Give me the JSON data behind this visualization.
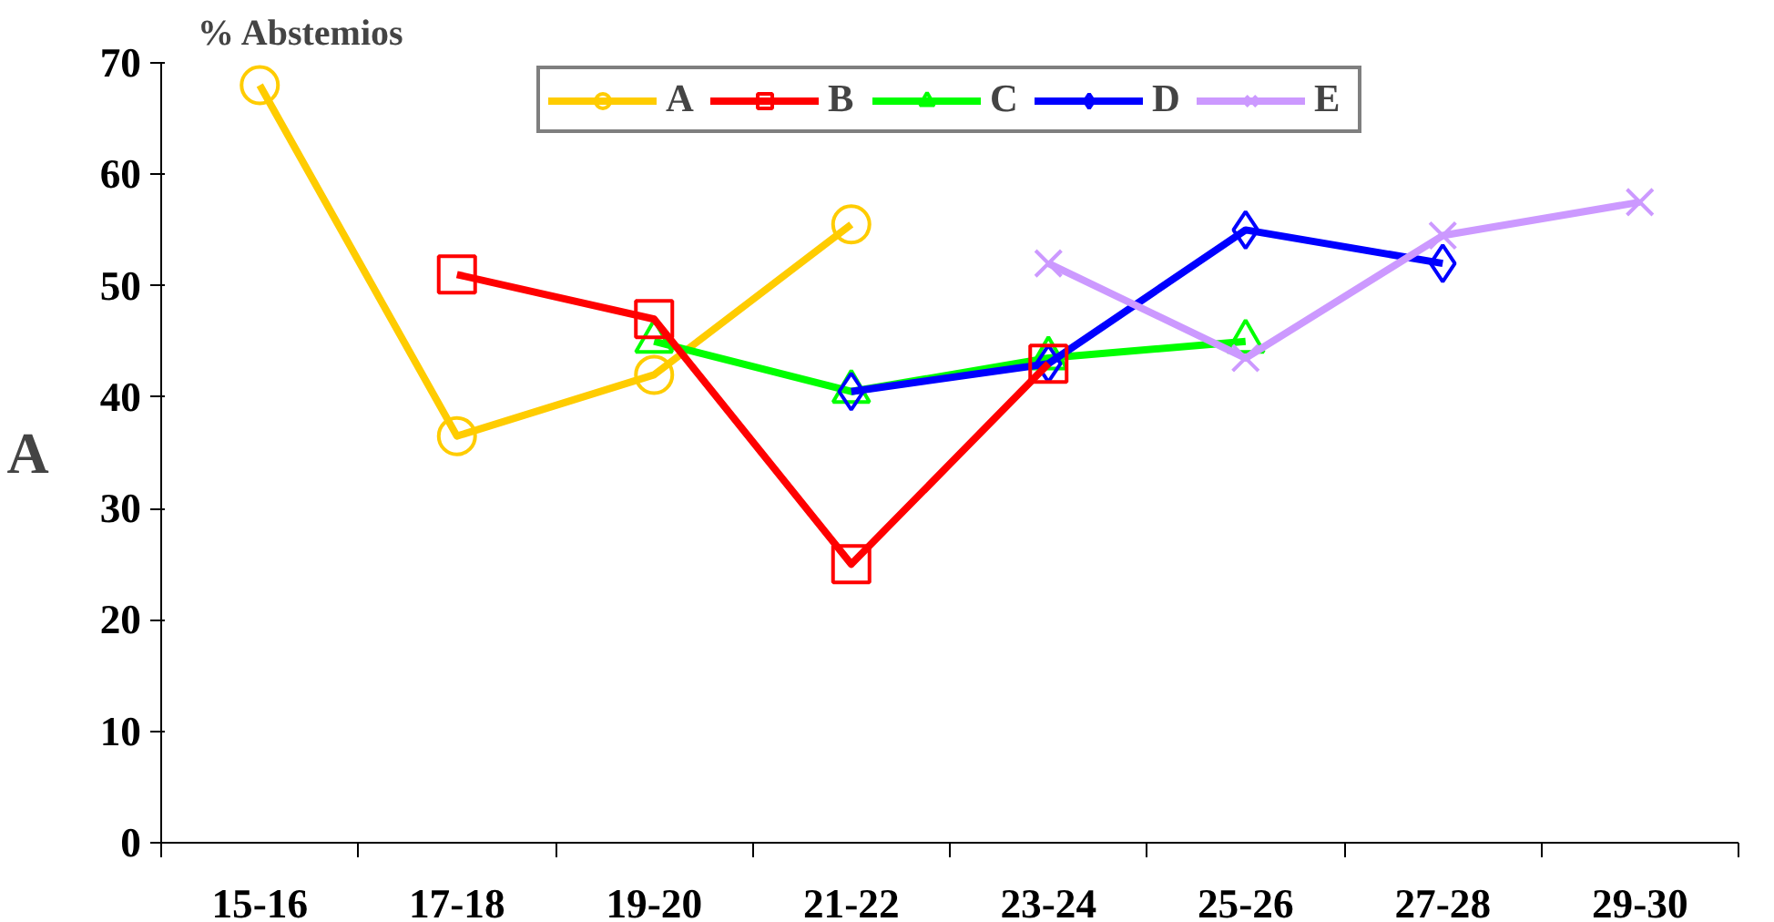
{
  "chart_data": {
    "type": "line",
    "ylabel": "% Abstemios",
    "annotations": [
      "A"
    ],
    "categories": [
      "15-16",
      "17-18",
      "19-20",
      "21-22",
      "23-24",
      "25-26",
      "27-28",
      "29-30"
    ],
    "ylim": [
      0,
      70
    ],
    "yticks": [
      0,
      10,
      20,
      30,
      40,
      50,
      60,
      70
    ],
    "grid": false,
    "legend": "top",
    "series": [
      {
        "name": "A",
        "color": "#ffcc00",
        "marker": "circle",
        "values": [
          68,
          36.5,
          42,
          55.5,
          null,
          null,
          null,
          null
        ]
      },
      {
        "name": "B",
        "color": "#ff0000",
        "marker": "square",
        "values": [
          null,
          51,
          47,
          25,
          43,
          null,
          null,
          null
        ]
      },
      {
        "name": "C",
        "color": "#00ff00",
        "marker": "triangle",
        "values": [
          null,
          null,
          45,
          40.5,
          43.5,
          45,
          null,
          null
        ]
      },
      {
        "name": "D",
        "color": "#0000ff",
        "marker": "diamond",
        "values": [
          null,
          null,
          null,
          40.5,
          43,
          55,
          52,
          null
        ]
      },
      {
        "name": "E",
        "color": "#cc99ff",
        "marker": "cross",
        "values": [
          null,
          null,
          null,
          null,
          52,
          43.5,
          54.5,
          57.5
        ]
      }
    ]
  }
}
